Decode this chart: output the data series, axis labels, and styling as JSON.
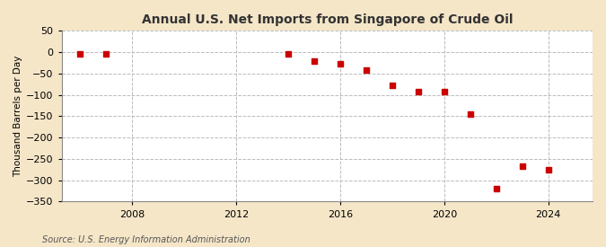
{
  "title": "Annual U.S. Net Imports from Singapore of Crude Oil",
  "ylabel": "Thousand Barrels per Day",
  "source": "Source: U.S. Energy Information Administration",
  "outer_bg": "#f5e6c8",
  "plot_bg": "#ffffff",
  "marker_color": "#cc0000",
  "marker_size": 5,
  "marker_style": "s",
  "ylim": [
    -350,
    50
  ],
  "yticks": [
    50,
    0,
    -50,
    -100,
    -150,
    -200,
    -250,
    -300,
    -350
  ],
  "xlim": [
    2005.3,
    2025.7
  ],
  "xticks": [
    2008,
    2012,
    2016,
    2020,
    2024
  ],
  "grid_color": "#bbbbbb",
  "data": {
    "years": [
      2006,
      2007,
      2014,
      2015,
      2016,
      2017,
      2018,
      2019,
      2020,
      2021,
      2022,
      2023,
      2024
    ],
    "values": [
      -3,
      -3,
      -5,
      -20,
      -28,
      -42,
      -78,
      -92,
      -93,
      -145,
      -320,
      -268,
      -275
    ]
  }
}
